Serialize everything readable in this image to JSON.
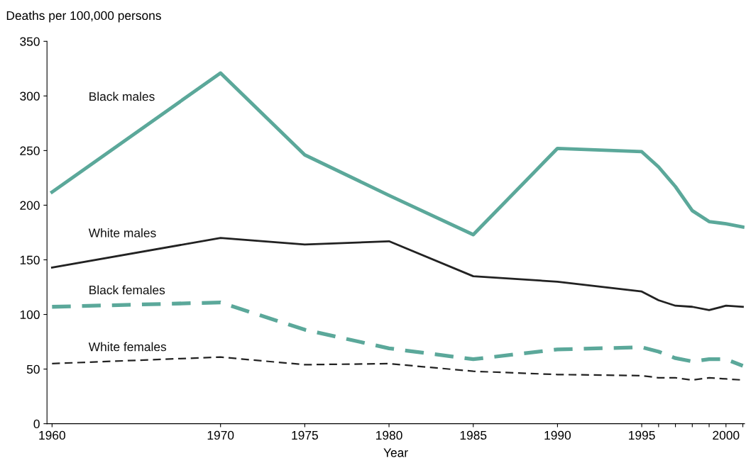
{
  "chart_data": {
    "type": "line",
    "ylabel": "Deaths per 100,000 persons",
    "xlabel": "Year",
    "x": [
      1960,
      1970,
      1975,
      1980,
      1985,
      1990,
      1995,
      1996,
      1997,
      1998,
      1999,
      2000,
      2001
    ],
    "series": [
      {
        "name": "Black males",
        "color": "#5ba89a",
        "line_style": "solid",
        "values": [
          212,
          321,
          246,
          209,
          173,
          252,
          249,
          235,
          217,
          195,
          185,
          183,
          180
        ]
      },
      {
        "name": "White males",
        "color": "#222222",
        "line_style": "solid",
        "values": [
          143,
          170,
          164,
          167,
          135,
          130,
          121,
          113,
          108,
          107,
          104,
          108,
          107
        ]
      },
      {
        "name": "Black females",
        "color": "#5ba89a",
        "line_style": "dashed",
        "values": [
          107,
          111,
          86,
          69,
          59,
          68,
          70,
          66,
          60,
          57,
          59,
          59,
          53
        ]
      },
      {
        "name": "White females",
        "color": "#222222",
        "line_style": "dashed",
        "values": [
          55,
          61,
          54,
          55,
          48,
          45,
          44,
          42,
          42,
          40,
          42,
          41,
          40
        ]
      }
    ],
    "xlim": [
      1959.7,
      2001.1
    ],
    "xticks": [
      1960,
      1970,
      1975,
      1980,
      1985,
      1990,
      1995,
      {
        "value": 1996,
        "label": null
      },
      {
        "value": 1997,
        "label": null
      },
      {
        "value": 1998,
        "label": null
      },
      {
        "value": 1999,
        "label": null
      },
      2000,
      {
        "value": 2001,
        "label": null
      }
    ],
    "ylim": [
      0,
      350
    ],
    "yticks": [
      0,
      50,
      100,
      150,
      200,
      250,
      300,
      350
    ],
    "grid": false,
    "legend": false,
    "marker": "none"
  }
}
